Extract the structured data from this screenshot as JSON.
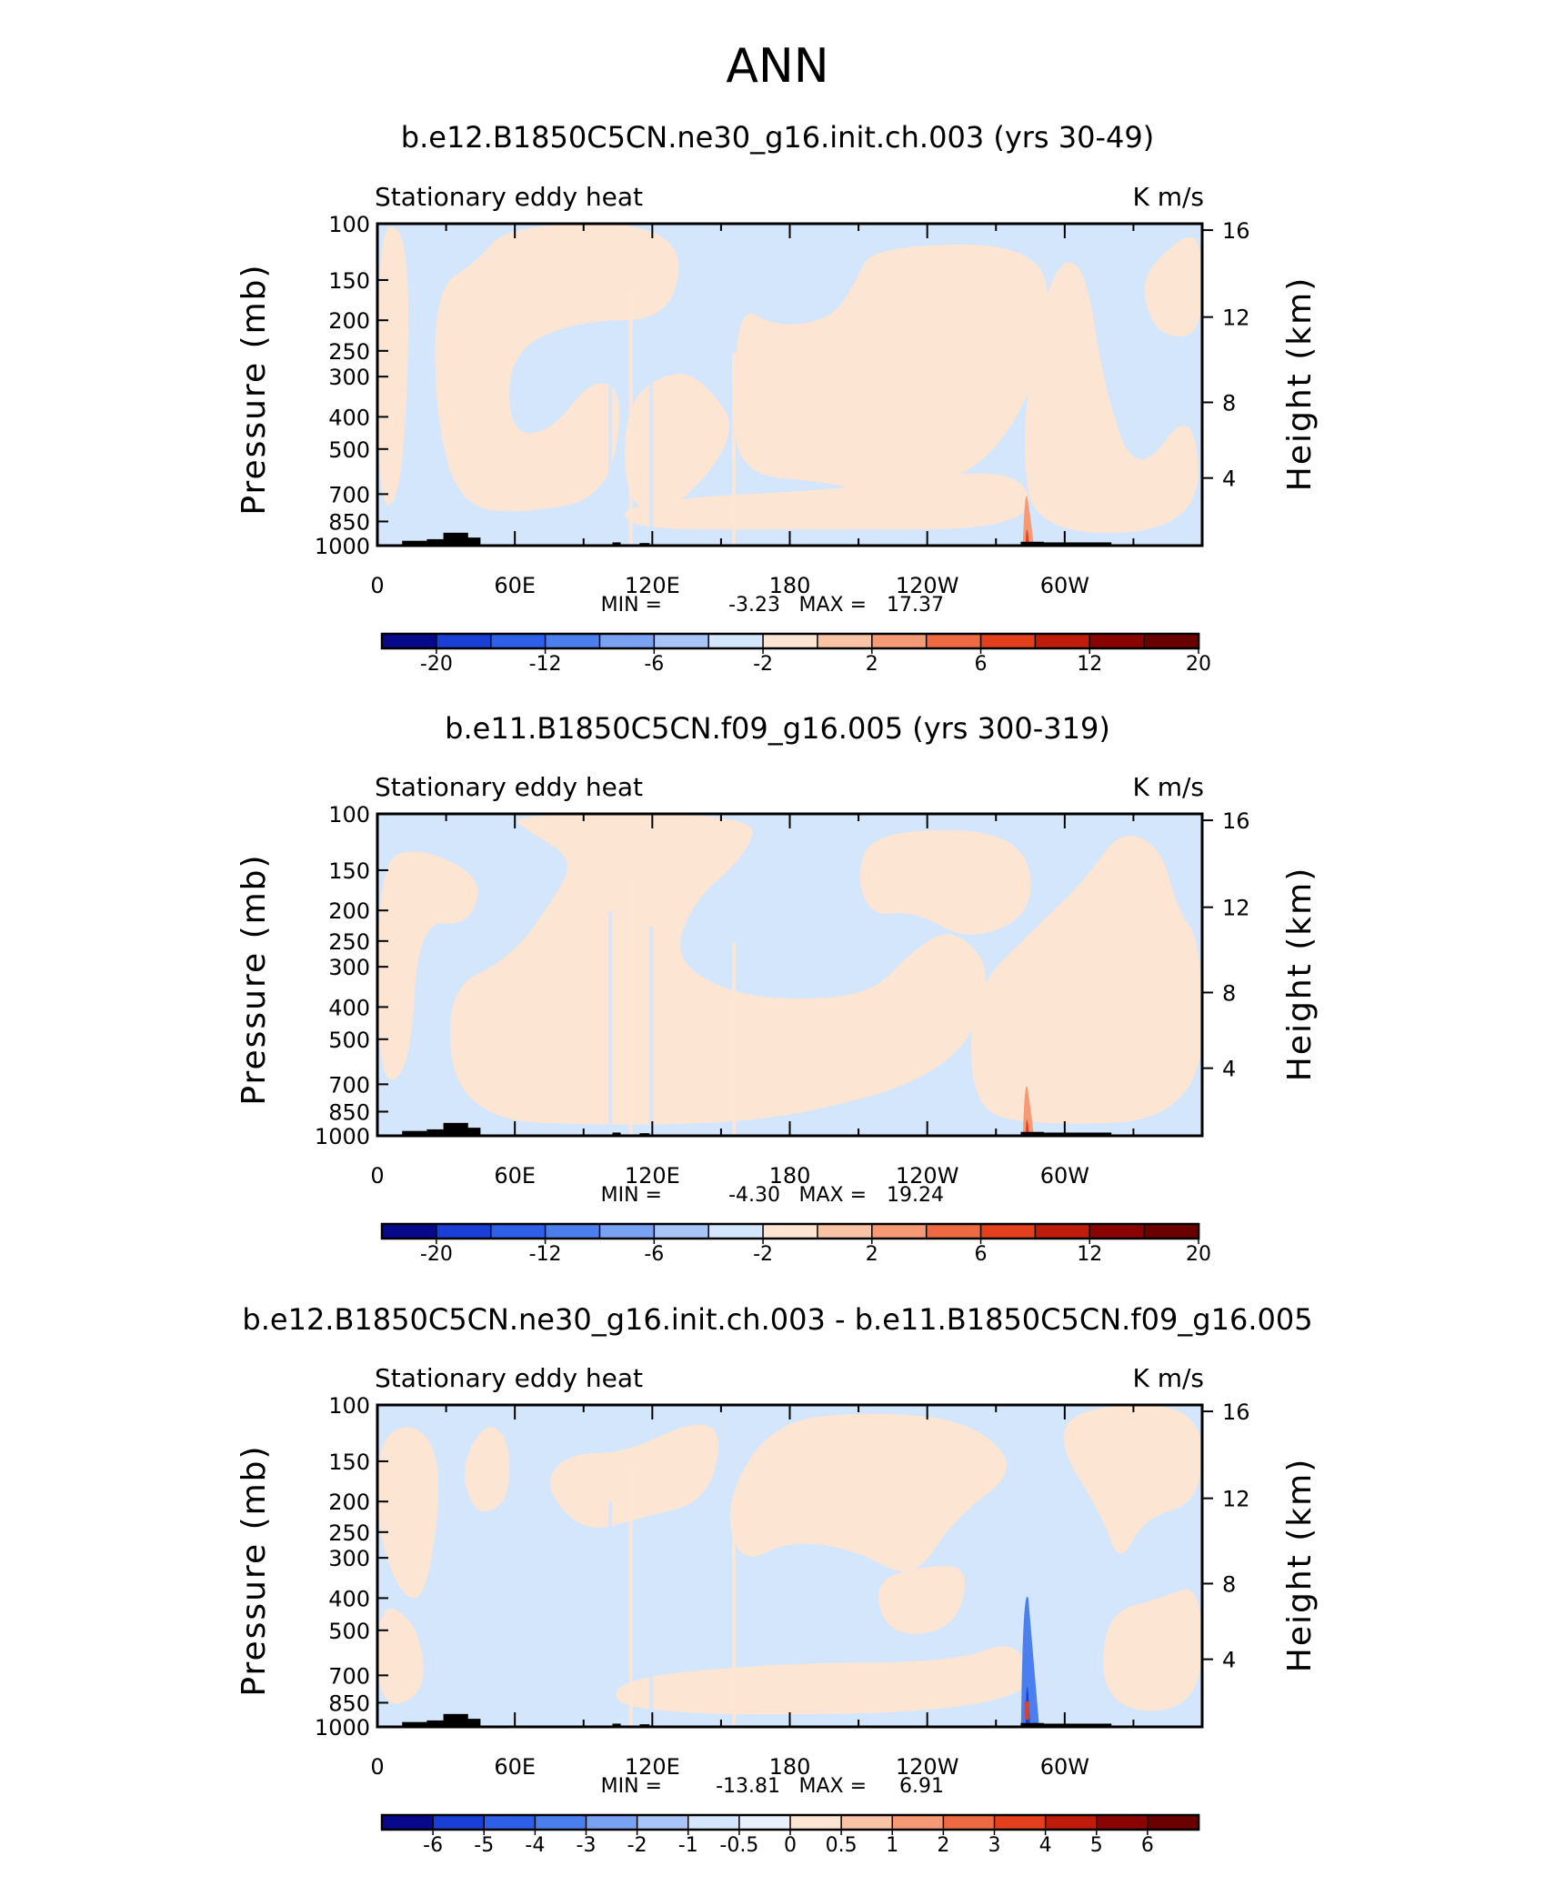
{
  "figure_title": "ANN",
  "colors": {
    "light_blue": "#d4e6fb",
    "light_peach": "#fde5d4",
    "axis": "#000000",
    "land": "#000000"
  },
  "chart_data": [
    {
      "type": "heatmap",
      "title": "b.e12.B1850C5CN.ne30_g16.init.ch.003 (yrs 30-49)",
      "left_string": "Stationary eddy heat",
      "right_string": "K m/s",
      "ylabel": "Pressure (mb)",
      "ylabel_right": "Height (km)",
      "x_ticks": [
        "0",
        "60E",
        "120E",
        "180",
        "120W",
        "60W"
      ],
      "y_ticks_left": [
        "100",
        "150",
        "200",
        "250",
        "300",
        "400",
        "500",
        "700",
        "850",
        "1000"
      ],
      "y_ticks_right": [
        "16",
        "12",
        "8",
        "4"
      ],
      "stats": {
        "min_label": "MIN =",
        "min": "-3.23",
        "max_label": "MAX =",
        "max": "17.37"
      },
      "colorbar": {
        "labels": [
          "-20",
          "-12",
          "-6",
          "-2",
          "2",
          "6",
          "12",
          "20"
        ],
        "colors": [
          "#08088a",
          "#1a3fd6",
          "#2d5fe8",
          "#4c7fee",
          "#7aa2f2",
          "#a9c4f6",
          "#d4e6fb",
          "#fde5d4",
          "#f9c3a6",
          "#f59a74",
          "#ee6a42",
          "#e4401e",
          "#c01c0c",
          "#8a0404",
          "#6a0000"
        ]
      },
      "field_range": [
        -3.23,
        17.37
      ]
    },
    {
      "type": "heatmap",
      "title": "b.e11.B1850C5CN.f09_g16.005 (yrs 300-319)",
      "left_string": "Stationary eddy heat",
      "right_string": "K m/s",
      "ylabel": "Pressure (mb)",
      "ylabel_right": "Height (km)",
      "x_ticks": [
        "0",
        "60E",
        "120E",
        "180",
        "120W",
        "60W"
      ],
      "y_ticks_left": [
        "100",
        "150",
        "200",
        "250",
        "300",
        "400",
        "500",
        "700",
        "850",
        "1000"
      ],
      "y_ticks_right": [
        "16",
        "12",
        "8",
        "4"
      ],
      "stats": {
        "min_label": "MIN =",
        "min": "-4.30",
        "max_label": "MAX =",
        "max": "19.24"
      },
      "colorbar": {
        "labels": [
          "-20",
          "-12",
          "-6",
          "-2",
          "2",
          "6",
          "12",
          "20"
        ],
        "colors": [
          "#08088a",
          "#1a3fd6",
          "#2d5fe8",
          "#4c7fee",
          "#7aa2f2",
          "#a9c4f6",
          "#d4e6fb",
          "#fde5d4",
          "#f9c3a6",
          "#f59a74",
          "#ee6a42",
          "#e4401e",
          "#c01c0c",
          "#8a0404",
          "#6a0000"
        ]
      },
      "field_range": [
        -4.3,
        19.24
      ]
    },
    {
      "type": "heatmap",
      "title": "b.e12.B1850C5CN.ne30_g16.init.ch.003 - b.e11.B1850C5CN.f09_g16.005",
      "left_string": "Stationary eddy heat",
      "right_string": "K m/s",
      "ylabel": "Pressure (mb)",
      "ylabel_right": "Height (km)",
      "x_ticks": [
        "0",
        "60E",
        "120E",
        "180",
        "120W",
        "60W"
      ],
      "y_ticks_left": [
        "100",
        "150",
        "200",
        "250",
        "300",
        "400",
        "500",
        "700",
        "850",
        "1000"
      ],
      "y_ticks_right": [
        "16",
        "12",
        "8",
        "4"
      ],
      "stats": {
        "min_label": "MIN =",
        "min": "-13.81",
        "max_label": "MAX =",
        "max": "6.91"
      },
      "colorbar": {
        "labels": [
          "-6",
          "-5",
          "-4",
          "-3",
          "-2",
          "-1",
          "-0.5",
          "0",
          "0.5",
          "1",
          "2",
          "3",
          "4",
          "5",
          "6"
        ],
        "colors": [
          "#08088a",
          "#1a3fd6",
          "#2d5fe8",
          "#4c7fee",
          "#7aa2f2",
          "#a9c4f6",
          "#d4e6fb",
          "#e8f0fb",
          "#fde5d4",
          "#f9c3a6",
          "#f59a74",
          "#ee6a42",
          "#e4401e",
          "#c01c0c",
          "#8a0404",
          "#6a0000"
        ]
      },
      "field_range": [
        -13.81,
        6.91
      ]
    }
  ]
}
